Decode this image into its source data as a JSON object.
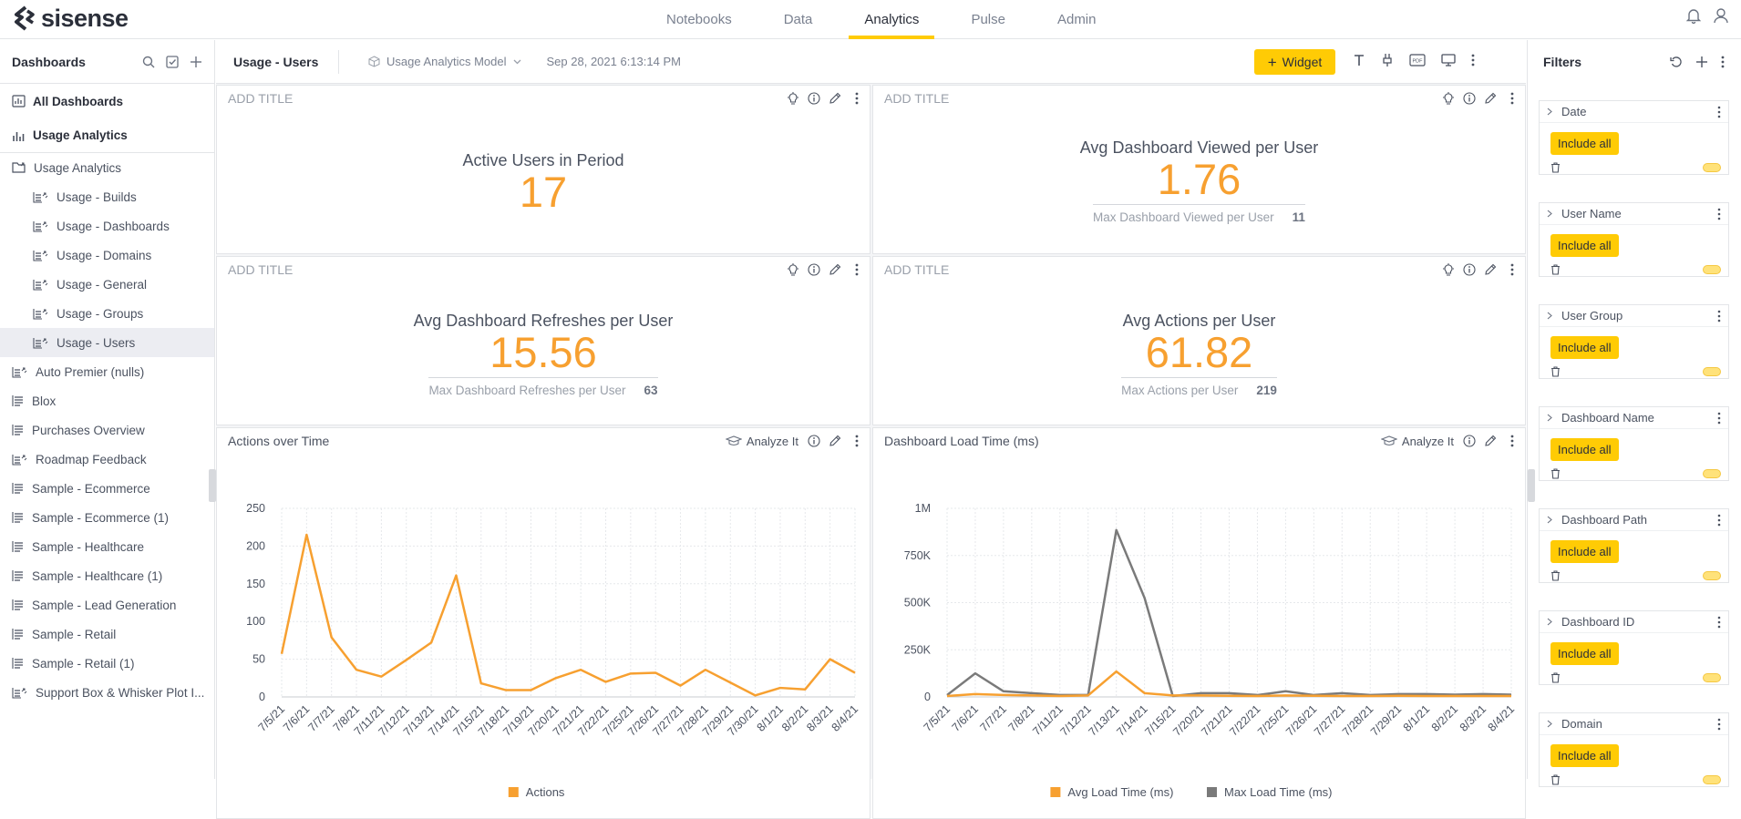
{
  "app": {
    "logo": "sisense"
  },
  "nav": [
    "Notebooks",
    "Data",
    "Analytics",
    "Pulse",
    "Admin"
  ],
  "nav_active": "Analytics",
  "sidebar": {
    "title": "Dashboards",
    "items": [
      {
        "label": "All Dashboards",
        "style": "bold"
      },
      {
        "label": "Usage Analytics",
        "style": "bold"
      },
      {
        "label": "Usage Analytics",
        "style": "folder"
      },
      {
        "label": "Usage - Builds",
        "style": "child"
      },
      {
        "label": "Usage - Dashboards",
        "style": "child"
      },
      {
        "label": "Usage - Domains",
        "style": "child"
      },
      {
        "label": "Usage - General",
        "style": "child"
      },
      {
        "label": "Usage - Groups",
        "style": "child"
      },
      {
        "label": "Usage - Users",
        "style": "child-selected"
      },
      {
        "label": "Auto Premier (nulls)",
        "style": "shared"
      },
      {
        "label": "Blox",
        "style": "plain"
      },
      {
        "label": "Purchases Overview",
        "style": "plain"
      },
      {
        "label": "Roadmap Feedback",
        "style": "shared"
      },
      {
        "label": "Sample - Ecommerce",
        "style": "plain"
      },
      {
        "label": "Sample - Ecommerce (1)",
        "style": "plain"
      },
      {
        "label": "Sample - Healthcare",
        "style": "plain"
      },
      {
        "label": "Sample - Healthcare (1)",
        "style": "plain"
      },
      {
        "label": "Sample - Lead Generation",
        "style": "plain"
      },
      {
        "label": "Sample - Retail",
        "style": "plain"
      },
      {
        "label": "Sample - Retail (1)",
        "style": "plain"
      },
      {
        "label": "Support Box & Whisker Plot I...",
        "style": "shared"
      }
    ]
  },
  "toolbar": {
    "title": "Usage - Users",
    "model": "Usage Analytics Model",
    "date": "Sep 28, 2021 6:13:14 PM",
    "widget_label": "Widget"
  },
  "widgets": {
    "w1": {
      "title": "ADD TITLE",
      "label": "Active Users in Period",
      "value": "17"
    },
    "w2": {
      "title": "ADD TITLE",
      "label": "Avg Dashboard Viewed per User",
      "value": "1.76",
      "sec_label": "Max Dashboard Viewed per User",
      "sec_value": "11"
    },
    "w3": {
      "title": "ADD TITLE",
      "label": "Avg Dashboard Refreshes per User",
      "value": "15.56",
      "sec_label": "Max Dashboard Refreshes per User",
      "sec_value": "63"
    },
    "w4": {
      "title": "ADD TITLE",
      "label": "Avg Actions per User",
      "value": "61.82",
      "sec_label": "Max Actions per User",
      "sec_value": "219"
    },
    "c1": {
      "title": "Actions over Time",
      "analyze": "Analyze It"
    },
    "c2": {
      "title": "Dashboard Load Time (ms)",
      "analyze": "Analyze It"
    }
  },
  "chart_data": [
    {
      "type": "line",
      "title": "Actions over Time",
      "categories": [
        "7/5/21",
        "7/6/21",
        "7/7/21",
        "7/8/21",
        "7/11/21",
        "7/12/21",
        "7/13/21",
        "7/14/21",
        "7/15/21",
        "7/18/21",
        "7/19/21",
        "7/20/21",
        "7/21/21",
        "7/22/21",
        "7/25/21",
        "7/26/21",
        "7/27/21",
        "7/28/21",
        "7/29/21",
        "7/30/21",
        "8/1/21",
        "8/2/21",
        "8/3/21",
        "8/4/21"
      ],
      "series": [
        {
          "name": "Actions",
          "color": "#f7a030",
          "values": [
            57,
            215,
            79,
            36,
            27,
            49,
            72,
            161,
            18,
            9,
            9,
            25,
            36,
            20,
            31,
            32,
            15,
            36,
            19,
            2,
            12,
            10,
            50,
            32
          ]
        }
      ],
      "y_ticks": [
        "0",
        "50",
        "100",
        "150",
        "200",
        "250"
      ],
      "ylim": [
        0,
        250
      ],
      "grid": true,
      "legend": "bottom"
    },
    {
      "type": "line",
      "title": "Dashboard Load Time (ms)",
      "categories": [
        "7/5/21",
        "7/6/21",
        "7/7/21",
        "7/8/21",
        "7/11/21",
        "7/12/21",
        "7/13/21",
        "7/14/21",
        "7/15/21",
        "7/20/21",
        "7/21/21",
        "7/22/21",
        "7/25/21",
        "7/26/21",
        "7/27/21",
        "7/28/21",
        "7/29/21",
        "8/1/21",
        "8/2/21",
        "8/3/21",
        "8/4/21"
      ],
      "series": [
        {
          "name": "Avg Load Time (ms)",
          "color": "#f7a030",
          "values": [
            5000,
            15000,
            10000,
            8000,
            5000,
            8000,
            135000,
            20000,
            8000,
            8000,
            6000,
            5000,
            8000,
            6000,
            5000,
            5000,
            6000,
            5000,
            5000,
            5000,
            5000
          ]
        },
        {
          "name": "Max Load Time (ms)",
          "color": "#7a7a7a",
          "values": [
            10000,
            125000,
            30000,
            20000,
            10000,
            10000,
            885000,
            525000,
            5000,
            20000,
            20000,
            10000,
            30000,
            10000,
            20000,
            10000,
            15000,
            15000,
            12000,
            15000,
            12000
          ]
        }
      ],
      "y_ticks": [
        "0",
        "250K",
        "500K",
        "750K",
        "1M"
      ],
      "ylim": [
        0,
        1000000
      ],
      "grid": true,
      "legend": "bottom"
    }
  ],
  "filters": {
    "title": "Filters",
    "items": [
      {
        "name": "Date",
        "action": "Include all"
      },
      {
        "name": "User Name",
        "action": "Include all"
      },
      {
        "name": "User Group",
        "action": "Include all"
      },
      {
        "name": "Dashboard Name",
        "action": "Include all"
      },
      {
        "name": "Dashboard Path",
        "action": "Include all"
      },
      {
        "name": "Dashboard ID",
        "action": "Include all"
      },
      {
        "name": "Domain",
        "action": "Include all"
      }
    ]
  },
  "colors": {
    "accent": "#ffcb05",
    "kpi": "#f7a030",
    "series_gray": "#7a7a7a"
  }
}
